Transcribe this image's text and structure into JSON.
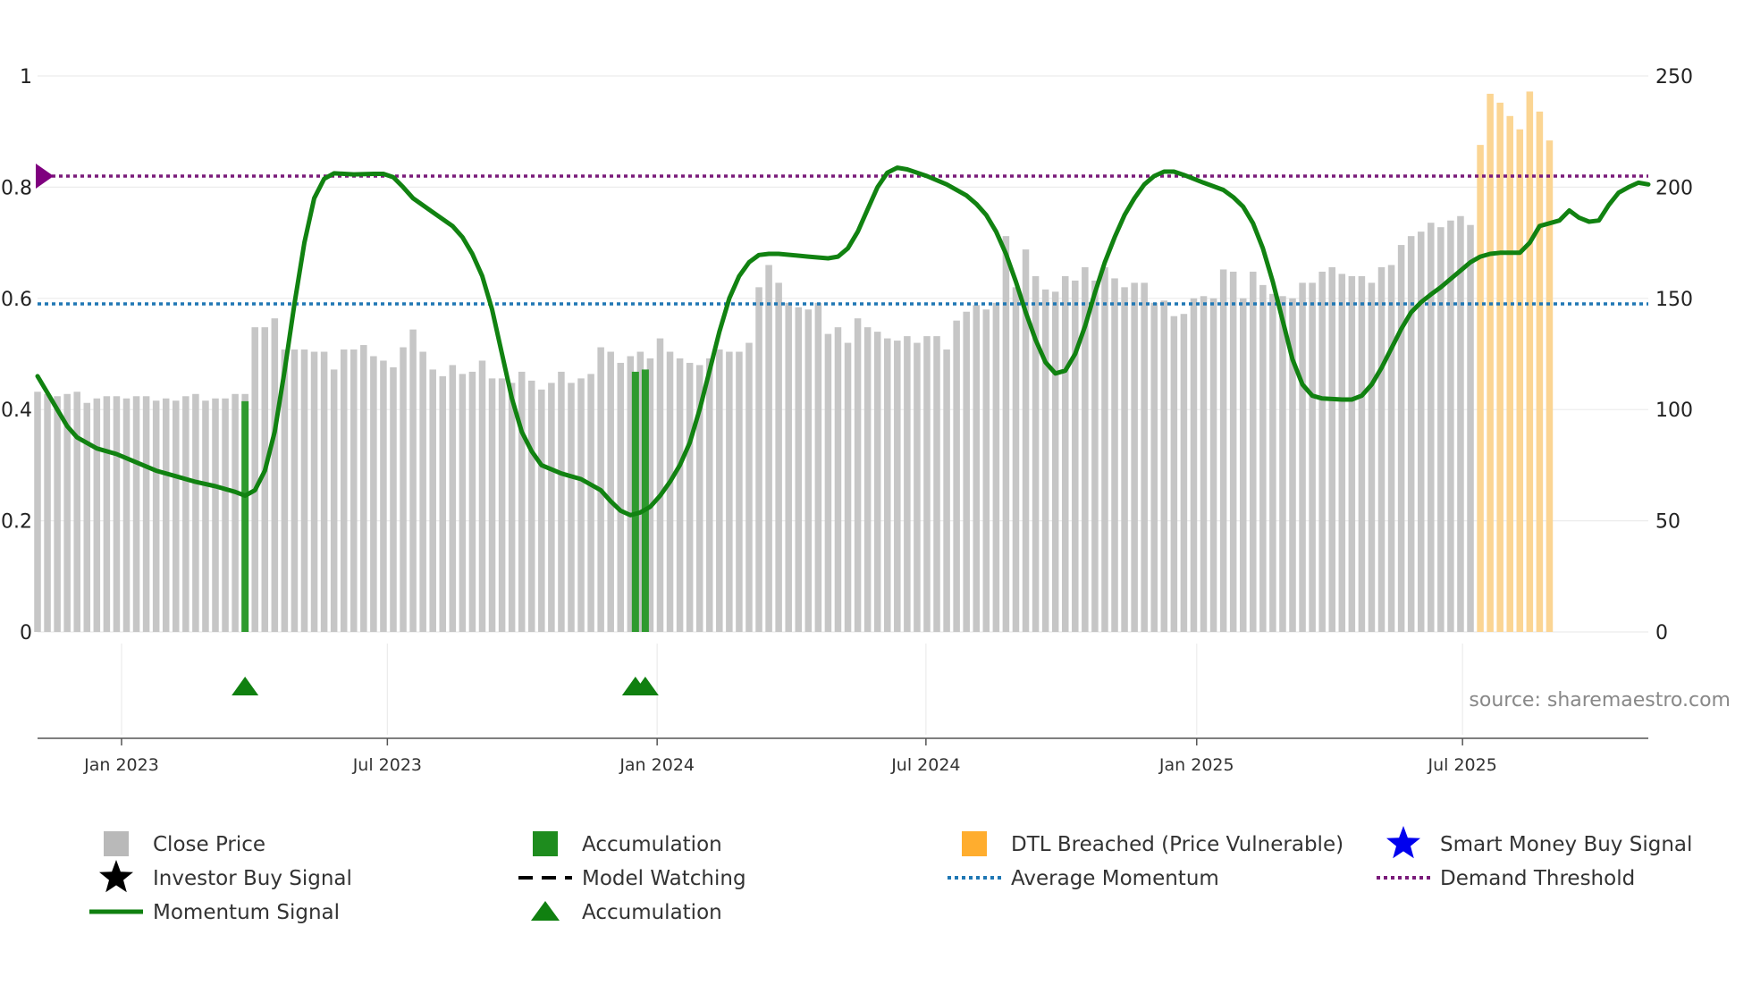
{
  "chart_data": {
    "type": "bar+line",
    "title": "",
    "source": "source: sharemaestro.com",
    "left_axis": {
      "range": [
        0,
        1
      ],
      "ticks": [
        {
          "v": 0,
          "label": "0"
        },
        {
          "v": 0.2,
          "label": "0.2"
        },
        {
          "v": 0.4,
          "label": "0.4"
        },
        {
          "v": 0.6,
          "label": "0.6"
        },
        {
          "v": 0.8,
          "label": "0.8"
        },
        {
          "v": 1,
          "label": "1"
        }
      ]
    },
    "right_axis": {
      "range": [
        0,
        250
      ],
      "ticks": [
        {
          "v": 0,
          "label": "0"
        },
        {
          "v": 50,
          "label": "50"
        },
        {
          "v": 100,
          "label": "100"
        },
        {
          "v": 150,
          "label": "150"
        },
        {
          "v": 200,
          "label": "200"
        },
        {
          "v": 250,
          "label": "250"
        }
      ]
    },
    "x_axis": {
      "range_weeks": [
        0,
        163
      ],
      "ticks": [
        {
          "w": 8.5,
          "label": "Jan 2023"
        },
        {
          "w": 35.4,
          "label": "Jul 2023"
        },
        {
          "w": 62.7,
          "label": "Jan 2024"
        },
        {
          "w": 89.9,
          "label": "Jul 2024"
        },
        {
          "w": 117.3,
          "label": "Jan 2025"
        },
        {
          "w": 144.2,
          "label": "Jul 2025"
        }
      ]
    },
    "close_price": [
      108,
      107,
      106,
      107,
      108,
      103,
      105,
      106,
      106,
      105,
      106,
      106,
      104,
      105,
      104,
      106,
      107,
      104,
      105,
      105,
      107,
      107,
      137,
      137,
      141,
      127,
      127,
      127,
      126,
      126,
      118,
      127,
      127,
      129,
      124,
      122,
      119,
      128,
      136,
      126,
      118,
      115,
      120,
      116,
      117,
      122,
      114,
      114,
      112,
      117,
      113,
      109,
      112,
      117,
      112,
      114,
      116,
      128,
      126,
      121,
      124,
      126,
      123,
      132,
      126,
      123,
      121,
      120,
      123,
      127,
      126,
      126,
      130,
      155,
      165,
      157,
      148,
      146,
      145,
      148,
      134,
      137,
      130,
      141,
      137,
      135,
      132,
      131,
      133,
      130,
      133,
      133,
      127,
      140,
      144,
      147,
      145,
      148,
      178,
      155,
      172,
      160,
      154,
      153,
      160,
      158,
      164,
      158,
      164,
      159,
      155,
      157,
      157,
      148,
      149,
      142,
      143,
      150,
      151,
      150,
      163,
      162,
      150,
      162,
      156,
      152,
      151,
      150,
      157,
      157,
      162,
      164,
      161,
      160,
      160,
      157,
      164,
      165,
      174,
      178,
      180,
      184,
      182,
      185,
      187,
      183
    ],
    "dtl_breached": [
      219,
      242,
      238,
      232,
      226,
      243,
      234,
      221
    ],
    "momentum": [
      [
        0,
        0.46
      ],
      [
        1,
        0.43
      ],
      [
        2,
        0.4
      ],
      [
        3,
        0.37
      ],
      [
        4,
        0.35
      ],
      [
        6,
        0.33
      ],
      [
        8,
        0.32
      ],
      [
        10,
        0.305
      ],
      [
        12,
        0.29
      ],
      [
        14,
        0.28
      ],
      [
        16,
        0.27
      ],
      [
        18,
        0.262
      ],
      [
        20,
        0.252
      ],
      [
        21,
        0.245
      ],
      [
        22,
        0.255
      ],
      [
        23,
        0.29
      ],
      [
        24,
        0.36
      ],
      [
        25,
        0.47
      ],
      [
        26,
        0.59
      ],
      [
        27,
        0.7
      ],
      [
        28,
        0.78
      ],
      [
        29,
        0.815
      ],
      [
        30,
        0.825
      ],
      [
        32,
        0.823
      ],
      [
        34,
        0.824
      ],
      [
        35,
        0.824
      ],
      [
        36,
        0.818
      ],
      [
        37,
        0.8
      ],
      [
        38,
        0.78
      ],
      [
        40,
        0.755
      ],
      [
        42,
        0.73
      ],
      [
        43,
        0.71
      ],
      [
        44,
        0.68
      ],
      [
        45,
        0.64
      ],
      [
        46,
        0.58
      ],
      [
        47,
        0.5
      ],
      [
        48,
        0.42
      ],
      [
        49,
        0.36
      ],
      [
        50,
        0.325
      ],
      [
        51,
        0.3
      ],
      [
        53,
        0.285
      ],
      [
        55,
        0.275
      ],
      [
        57,
        0.255
      ],
      [
        58,
        0.235
      ],
      [
        59,
        0.218
      ],
      [
        60,
        0.21
      ],
      [
        61,
        0.215
      ],
      [
        62,
        0.225
      ],
      [
        63,
        0.245
      ],
      [
        64,
        0.27
      ],
      [
        65,
        0.3
      ],
      [
        66,
        0.34
      ],
      [
        67,
        0.4
      ],
      [
        68,
        0.47
      ],
      [
        69,
        0.54
      ],
      [
        70,
        0.6
      ],
      [
        71,
        0.64
      ],
      [
        72,
        0.665
      ],
      [
        73,
        0.678
      ],
      [
        74,
        0.68
      ],
      [
        75,
        0.68
      ],
      [
        78,
        0.675
      ],
      [
        80,
        0.672
      ],
      [
        81,
        0.675
      ],
      [
        82,
        0.69
      ],
      [
        83,
        0.72
      ],
      [
        84,
        0.76
      ],
      [
        85,
        0.8
      ],
      [
        86,
        0.826
      ],
      [
        87,
        0.835
      ],
      [
        88,
        0.832
      ],
      [
        90,
        0.82
      ],
      [
        92,
        0.805
      ],
      [
        94,
        0.785
      ],
      [
        95,
        0.77
      ],
      [
        96,
        0.75
      ],
      [
        97,
        0.72
      ],
      [
        98,
        0.68
      ],
      [
        99,
        0.63
      ],
      [
        100,
        0.575
      ],
      [
        101,
        0.525
      ],
      [
        102,
        0.485
      ],
      [
        103,
        0.465
      ],
      [
        104,
        0.47
      ],
      [
        105,
        0.5
      ],
      [
        106,
        0.55
      ],
      [
        107,
        0.61
      ],
      [
        108,
        0.665
      ],
      [
        109,
        0.71
      ],
      [
        110,
        0.75
      ],
      [
        111,
        0.78
      ],
      [
        112,
        0.805
      ],
      [
        113,
        0.82
      ],
      [
        114,
        0.828
      ],
      [
        115,
        0.828
      ],
      [
        116,
        0.822
      ],
      [
        118,
        0.808
      ],
      [
        120,
        0.795
      ],
      [
        121,
        0.782
      ],
      [
        122,
        0.765
      ],
      [
        123,
        0.735
      ],
      [
        124,
        0.69
      ],
      [
        125,
        0.63
      ],
      [
        126,
        0.56
      ],
      [
        127,
        0.49
      ],
      [
        128,
        0.445
      ],
      [
        129,
        0.425
      ],
      [
        130,
        0.42
      ],
      [
        132,
        0.418
      ],
      [
        133,
        0.418
      ],
      [
        134,
        0.425
      ],
      [
        135,
        0.445
      ],
      [
        136,
        0.475
      ],
      [
        137,
        0.51
      ],
      [
        138,
        0.545
      ],
      [
        139,
        0.575
      ],
      [
        140,
        0.593
      ],
      [
        141,
        0.607
      ],
      [
        142,
        0.62
      ],
      [
        143,
        0.635
      ],
      [
        144,
        0.65
      ],
      [
        145,
        0.665
      ],
      [
        146,
        0.675
      ],
      [
        147,
        0.68
      ],
      [
        148,
        0.682
      ],
      [
        149,
        0.682
      ],
      [
        150,
        0.682
      ],
      [
        151,
        0.7
      ],
      [
        152,
        0.73
      ],
      [
        153,
        0.735
      ],
      [
        154,
        0.74
      ],
      [
        155,
        0.758
      ],
      [
        156,
        0.745
      ],
      [
        157,
        0.738
      ],
      [
        158,
        0.74
      ],
      [
        159,
        0.768
      ],
      [
        160,
        0.79
      ],
      [
        161,
        0.8
      ],
      [
        162,
        0.808
      ],
      [
        163,
        0.805
      ]
    ],
    "average_momentum": 0.59,
    "demand_threshold": 0.82,
    "accumulation_bars": [
      21,
      60.5,
      61.5
    ],
    "accumulation_markers": [
      21,
      60.5,
      61.5
    ]
  },
  "legend": [
    {
      "label": "Close Price",
      "symbol": "square",
      "color": "#b9b9b9"
    },
    {
      "label": "Accumulation",
      "symbol": "square",
      "color": "#1e8c1e"
    },
    {
      "label": "DTL Breached (Price Vulnerable)",
      "symbol": "square",
      "color": "#ffad2e"
    },
    {
      "label": "Smart Money Buy Signal",
      "symbol": "star",
      "color": "#0000ee"
    },
    {
      "label": "Investor Buy Signal",
      "symbol": "star",
      "color": "#000000"
    },
    {
      "label": "Model Watching",
      "symbol": "dash",
      "color": "#000000"
    },
    {
      "label": "Average Momentum",
      "symbol": "dot",
      "color": "#1f77b4"
    },
    {
      "label": "Demand Threshold",
      "symbol": "dot",
      "color": "#7a1b7a"
    },
    {
      "label": "Momentum Signal",
      "symbol": "line",
      "color": "#108010"
    },
    {
      "label": "Accumulation",
      "symbol": "triangle",
      "color": "#108010"
    }
  ]
}
